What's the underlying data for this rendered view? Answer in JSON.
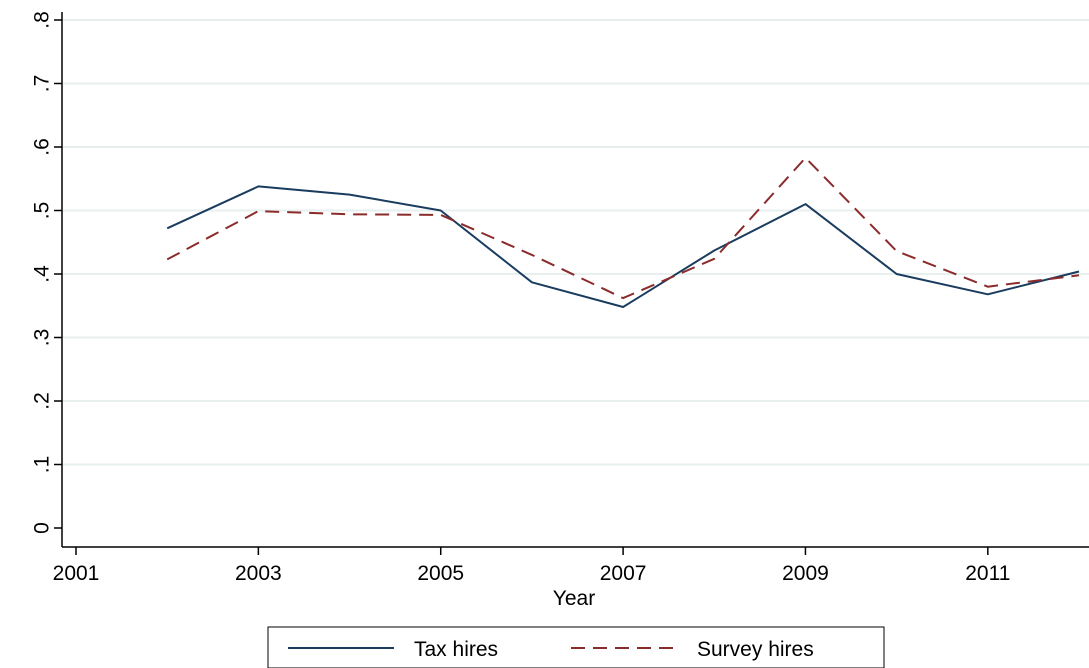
{
  "chart_data": {
    "type": "line",
    "xlabel": "Year",
    "ylabel": "",
    "xlim": [
      2001,
      2012
    ],
    "ylim": [
      0,
      0.8
    ],
    "x_ticks": [
      2001,
      2003,
      2005,
      2007,
      2009,
      2011
    ],
    "x_tick_labels": [
      "2001",
      "2003",
      "2005",
      "2007",
      "2009",
      "2011"
    ],
    "y_ticks": [
      0,
      0.1,
      0.2,
      0.3,
      0.4,
      0.5,
      0.6,
      0.7,
      0.8
    ],
    "y_tick_labels": [
      "0",
      ".1",
      ".2",
      ".3",
      ".4",
      ".5",
      ".6",
      ".7",
      ".8"
    ],
    "grid": "horizontal",
    "legend_position": "bottom",
    "x": [
      2002,
      2003,
      2004,
      2005,
      2006,
      2007,
      2008,
      2009,
      2010,
      2011,
      2012
    ],
    "series": [
      {
        "name": "Tax hires",
        "color": "#1a3c5e",
        "style": "solid",
        "values": [
          0.472,
          0.538,
          0.525,
          0.5,
          0.387,
          0.348,
          0.437,
          0.51,
          0.4,
          0.368,
          0.404
        ]
      },
      {
        "name": "Survey hires",
        "color": "#8b2b2b",
        "style": "dashed",
        "values": [
          0.423,
          0.499,
          0.494,
          0.493,
          0.43,
          0.362,
          0.424,
          0.583,
          0.436,
          0.38,
          0.398
        ]
      }
    ]
  }
}
